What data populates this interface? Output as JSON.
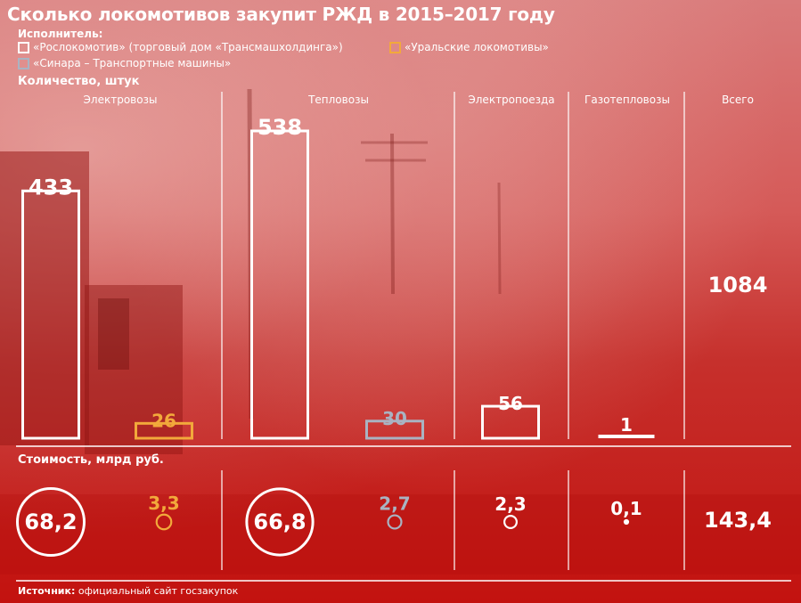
{
  "title": "Сколько локомотивов закупит РЖД в 2015–2017 году",
  "legend": {
    "heading": "Исполнитель:",
    "items": [
      {
        "name": "«Рослокомотив» (торговый дом «Трансмашхолдинга»)",
        "color": "#ffffff"
      },
      {
        "name": "«Уральские локомотивы»",
        "color": "#f2a93b"
      },
      {
        "name": "«Синара – Транспортные машины»",
        "color": "#a9b3c2"
      }
    ]
  },
  "quantity_label": "Количество, штук",
  "cost_label": "Стоимость, млрд руб.",
  "source": {
    "label": "Источник:",
    "text": "официальный сайт госзакупок"
  },
  "columns": [
    "Электровозы",
    "Тепловозы",
    "Электропоезда",
    "Газотепловозы",
    "Всего"
  ],
  "chart_data": {
    "type": "bar",
    "categories": [
      "Электровозы",
      "Тепловозы",
      "Электропоезда",
      "Газотепловозы"
    ],
    "quantity_unit": "штук",
    "cost_unit": "млрд руб.",
    "bars": [
      {
        "category": "Электровозы",
        "supplier": "«Рослокомотив» (торговый дом «Трансмашхолдинга»)",
        "quantity": 433,
        "quantity_label": "433",
        "cost": 68.2,
        "cost_label": "68,2",
        "color": "#ffffff"
      },
      {
        "category": "Электровозы",
        "supplier": "«Уральские локомотивы»",
        "quantity": 26,
        "quantity_label": "26",
        "cost": 3.3,
        "cost_label": "3,3",
        "color": "#f2a93b"
      },
      {
        "category": "Тепловозы",
        "supplier": "«Рослокомотив» (торговый дом «Трансмашхолдинга»)",
        "quantity": 538,
        "quantity_label": "538",
        "cost": 66.8,
        "cost_label": "66,8",
        "color": "#ffffff"
      },
      {
        "category": "Тепловозы",
        "supplier": "«Синара – Транспортные машины»",
        "quantity": 30,
        "quantity_label": "30",
        "cost": 2.7,
        "cost_label": "2,7",
        "color": "#a9b3c2"
      },
      {
        "category": "Электропоезда",
        "supplier": "«Рослокомотив» (торговый дом «Трансмашхолдинга»)",
        "quantity": 56,
        "quantity_label": "56",
        "cost": 2.3,
        "cost_label": "2,3",
        "color": "#ffffff"
      },
      {
        "category": "Газотепловозы",
        "supplier": "«Рослокомотив» (торговый дом «Трансмашхолдинга»)",
        "quantity": 1,
        "quantity_label": "1",
        "cost": 0.1,
        "cost_label": "0,1",
        "color": "#ffffff"
      }
    ],
    "total": {
      "label": "Всего",
      "quantity": 1084,
      "quantity_label": "1084",
      "cost": 143.4,
      "cost_label": "143,4"
    }
  }
}
